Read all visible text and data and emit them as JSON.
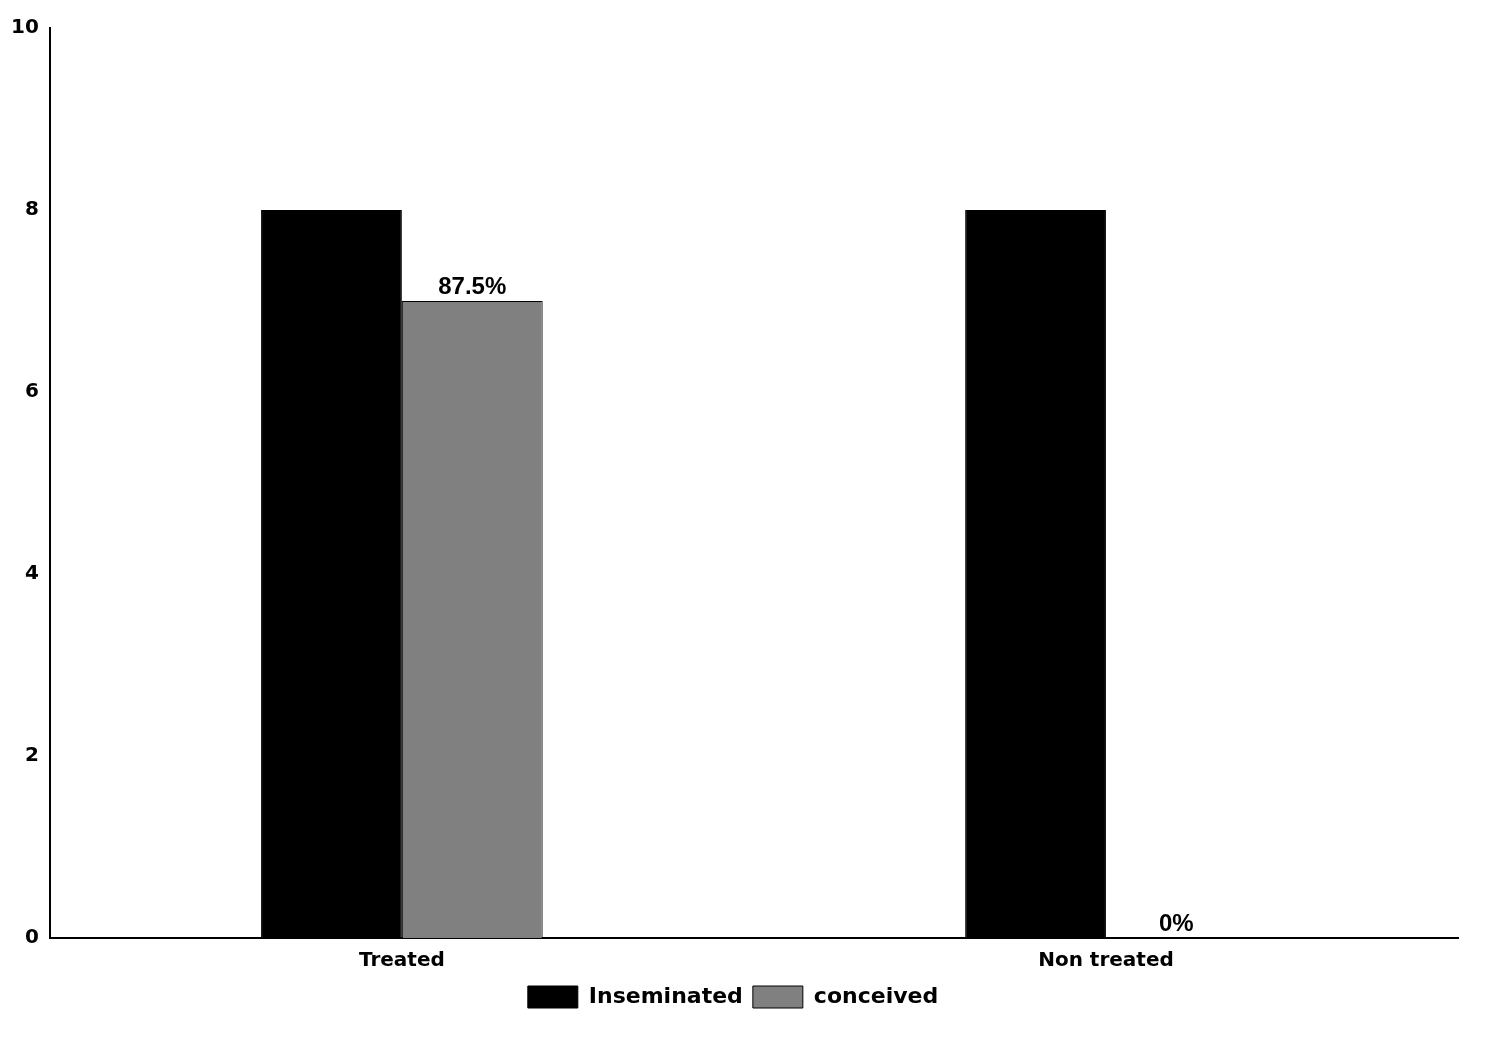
{
  "chart_data": {
    "type": "bar",
    "categories": [
      "Treated",
      "Non treated"
    ],
    "series": [
      {
        "name": "Inseminated",
        "color": "#000000",
        "values": [
          8,
          8
        ]
      },
      {
        "name": "conceived",
        "color": "#808080",
        "values": [
          7,
          0
        ]
      }
    ],
    "annotations": [
      {
        "text": "87.5%",
        "x": "Treated",
        "y": 7
      },
      {
        "text": "0%",
        "x": "Non treated",
        "y": 0
      }
    ],
    "ylim": [
      0,
      10
    ],
    "yticks": [
      0,
      2,
      4,
      6,
      8,
      10
    ],
    "grid": false,
    "legend": "bottom"
  }
}
